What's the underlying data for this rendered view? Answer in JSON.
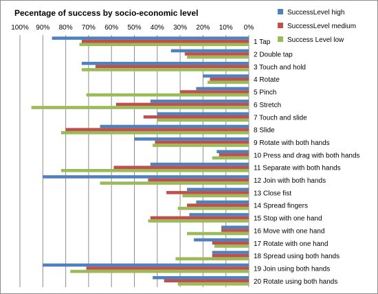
{
  "chart_data": {
    "type": "bar",
    "orientation": "horizontal",
    "x_axis": "reversed",
    "title": "Pecentage of success by socio-economic level",
    "xlabel": "",
    "ylabel": "",
    "xlim": [
      0,
      100
    ],
    "x_ticks": [
      "0%",
      "10%",
      "20%",
      "30%",
      "40%",
      "50%",
      "60%",
      "70%",
      "80%",
      "90%",
      "100%"
    ],
    "grid": "vertical",
    "legend": "top-right",
    "categories": [
      "1 Tap",
      "2 Double tap",
      "3 Touch and hold",
      "4 Rotate",
      "5 Pinch",
      "6 Stretch",
      "7 Touch and slide",
      "8 Slide",
      "9 Rotate with both hands",
      "10 Press and drag with both hands",
      "11 Separate with both hands",
      "12 Join with both hands",
      "13 Close fist",
      "14 Spread fingers",
      "15 Stop with one hand",
      "16 Move with one hand",
      "17 Rotate with one hand",
      "18 Spread using both hands",
      "19 Join using both hands",
      "20 Rotate using both hands"
    ],
    "series": [
      {
        "name": "SuccessLevel high",
        "color": "#4f81bd",
        "values": [
          86,
          34,
          73,
          20,
          23,
          43,
          40,
          65,
          50,
          14,
          43,
          90,
          27,
          23,
          26,
          12,
          24,
          16,
          90,
          42
        ]
      },
      {
        "name": "SuccessLevel medium",
        "color": "#c0504d",
        "values": [
          73,
          28,
          67,
          17,
          30,
          58,
          46,
          80,
          41,
          13,
          59,
          44,
          36,
          27,
          43,
          12,
          16,
          16,
          71,
          37
        ]
      },
      {
        "name": "Success Level low",
        "color": "#9bbb59",
        "values": [
          74,
          27,
          73,
          18,
          71,
          95,
          40,
          82,
          42,
          16,
          82,
          65,
          29,
          31,
          44,
          27,
          15,
          32,
          78,
          31
        ]
      }
    ]
  }
}
